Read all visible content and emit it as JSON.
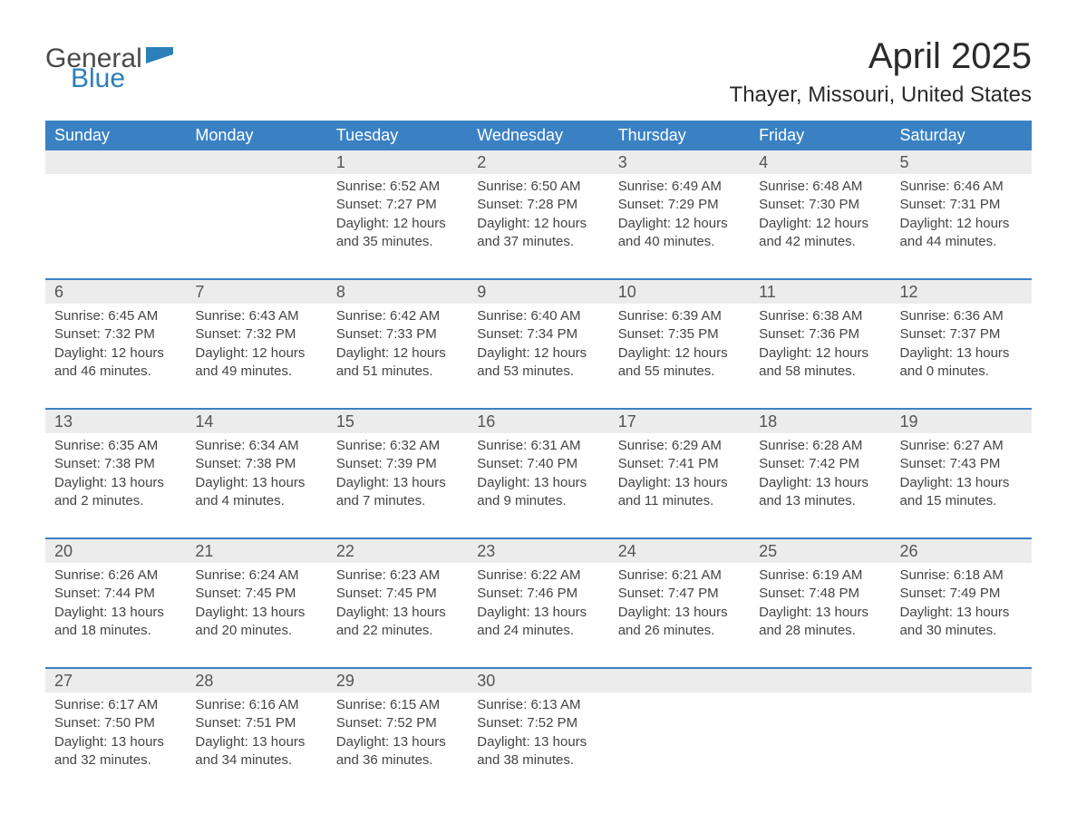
{
  "logo": {
    "text1": "General",
    "text2": "Blue",
    "brand_color": "#2c7fb8"
  },
  "title": "April 2025",
  "location": "Thayer, Missouri, United States",
  "colors": {
    "header_bg": "#3a81c4",
    "header_text": "#ffffff",
    "daynum_bg": "#ececec",
    "text": "#444444",
    "rule": "#3a81c4"
  },
  "day_headers": [
    "Sunday",
    "Monday",
    "Tuesday",
    "Wednesday",
    "Thursday",
    "Friday",
    "Saturday"
  ],
  "weeks": [
    [
      null,
      null,
      {
        "n": "1",
        "sunrise": "Sunrise: 6:52 AM",
        "sunset": "Sunset: 7:27 PM",
        "daylight": "Daylight: 12 hours and 35 minutes."
      },
      {
        "n": "2",
        "sunrise": "Sunrise: 6:50 AM",
        "sunset": "Sunset: 7:28 PM",
        "daylight": "Daylight: 12 hours and 37 minutes."
      },
      {
        "n": "3",
        "sunrise": "Sunrise: 6:49 AM",
        "sunset": "Sunset: 7:29 PM",
        "daylight": "Daylight: 12 hours and 40 minutes."
      },
      {
        "n": "4",
        "sunrise": "Sunrise: 6:48 AM",
        "sunset": "Sunset: 7:30 PM",
        "daylight": "Daylight: 12 hours and 42 minutes."
      },
      {
        "n": "5",
        "sunrise": "Sunrise: 6:46 AM",
        "sunset": "Sunset: 7:31 PM",
        "daylight": "Daylight: 12 hours and 44 minutes."
      }
    ],
    [
      {
        "n": "6",
        "sunrise": "Sunrise: 6:45 AM",
        "sunset": "Sunset: 7:32 PM",
        "daylight": "Daylight: 12 hours and 46 minutes."
      },
      {
        "n": "7",
        "sunrise": "Sunrise: 6:43 AM",
        "sunset": "Sunset: 7:32 PM",
        "daylight": "Daylight: 12 hours and 49 minutes."
      },
      {
        "n": "8",
        "sunrise": "Sunrise: 6:42 AM",
        "sunset": "Sunset: 7:33 PM",
        "daylight": "Daylight: 12 hours and 51 minutes."
      },
      {
        "n": "9",
        "sunrise": "Sunrise: 6:40 AM",
        "sunset": "Sunset: 7:34 PM",
        "daylight": "Daylight: 12 hours and 53 minutes."
      },
      {
        "n": "10",
        "sunrise": "Sunrise: 6:39 AM",
        "sunset": "Sunset: 7:35 PM",
        "daylight": "Daylight: 12 hours and 55 minutes."
      },
      {
        "n": "11",
        "sunrise": "Sunrise: 6:38 AM",
        "sunset": "Sunset: 7:36 PM",
        "daylight": "Daylight: 12 hours and 58 minutes."
      },
      {
        "n": "12",
        "sunrise": "Sunrise: 6:36 AM",
        "sunset": "Sunset: 7:37 PM",
        "daylight": "Daylight: 13 hours and 0 minutes."
      }
    ],
    [
      {
        "n": "13",
        "sunrise": "Sunrise: 6:35 AM",
        "sunset": "Sunset: 7:38 PM",
        "daylight": "Daylight: 13 hours and 2 minutes."
      },
      {
        "n": "14",
        "sunrise": "Sunrise: 6:34 AM",
        "sunset": "Sunset: 7:38 PM",
        "daylight": "Daylight: 13 hours and 4 minutes."
      },
      {
        "n": "15",
        "sunrise": "Sunrise: 6:32 AM",
        "sunset": "Sunset: 7:39 PM",
        "daylight": "Daylight: 13 hours and 7 minutes."
      },
      {
        "n": "16",
        "sunrise": "Sunrise: 6:31 AM",
        "sunset": "Sunset: 7:40 PM",
        "daylight": "Daylight: 13 hours and 9 minutes."
      },
      {
        "n": "17",
        "sunrise": "Sunrise: 6:29 AM",
        "sunset": "Sunset: 7:41 PM",
        "daylight": "Daylight: 13 hours and 11 minutes."
      },
      {
        "n": "18",
        "sunrise": "Sunrise: 6:28 AM",
        "sunset": "Sunset: 7:42 PM",
        "daylight": "Daylight: 13 hours and 13 minutes."
      },
      {
        "n": "19",
        "sunrise": "Sunrise: 6:27 AM",
        "sunset": "Sunset: 7:43 PM",
        "daylight": "Daylight: 13 hours and 15 minutes."
      }
    ],
    [
      {
        "n": "20",
        "sunrise": "Sunrise: 6:26 AM",
        "sunset": "Sunset: 7:44 PM",
        "daylight": "Daylight: 13 hours and 18 minutes."
      },
      {
        "n": "21",
        "sunrise": "Sunrise: 6:24 AM",
        "sunset": "Sunset: 7:45 PM",
        "daylight": "Daylight: 13 hours and 20 minutes."
      },
      {
        "n": "22",
        "sunrise": "Sunrise: 6:23 AM",
        "sunset": "Sunset: 7:45 PM",
        "daylight": "Daylight: 13 hours and 22 minutes."
      },
      {
        "n": "23",
        "sunrise": "Sunrise: 6:22 AM",
        "sunset": "Sunset: 7:46 PM",
        "daylight": "Daylight: 13 hours and 24 minutes."
      },
      {
        "n": "24",
        "sunrise": "Sunrise: 6:21 AM",
        "sunset": "Sunset: 7:47 PM",
        "daylight": "Daylight: 13 hours and 26 minutes."
      },
      {
        "n": "25",
        "sunrise": "Sunrise: 6:19 AM",
        "sunset": "Sunset: 7:48 PM",
        "daylight": "Daylight: 13 hours and 28 minutes."
      },
      {
        "n": "26",
        "sunrise": "Sunrise: 6:18 AM",
        "sunset": "Sunset: 7:49 PM",
        "daylight": "Daylight: 13 hours and 30 minutes."
      }
    ],
    [
      {
        "n": "27",
        "sunrise": "Sunrise: 6:17 AM",
        "sunset": "Sunset: 7:50 PM",
        "daylight": "Daylight: 13 hours and 32 minutes."
      },
      {
        "n": "28",
        "sunrise": "Sunrise: 6:16 AM",
        "sunset": "Sunset: 7:51 PM",
        "daylight": "Daylight: 13 hours and 34 minutes."
      },
      {
        "n": "29",
        "sunrise": "Sunrise: 6:15 AM",
        "sunset": "Sunset: 7:52 PM",
        "daylight": "Daylight: 13 hours and 36 minutes."
      },
      {
        "n": "30",
        "sunrise": "Sunrise: 6:13 AM",
        "sunset": "Sunset: 7:52 PM",
        "daylight": "Daylight: 13 hours and 38 minutes."
      },
      null,
      null,
      null
    ]
  ]
}
